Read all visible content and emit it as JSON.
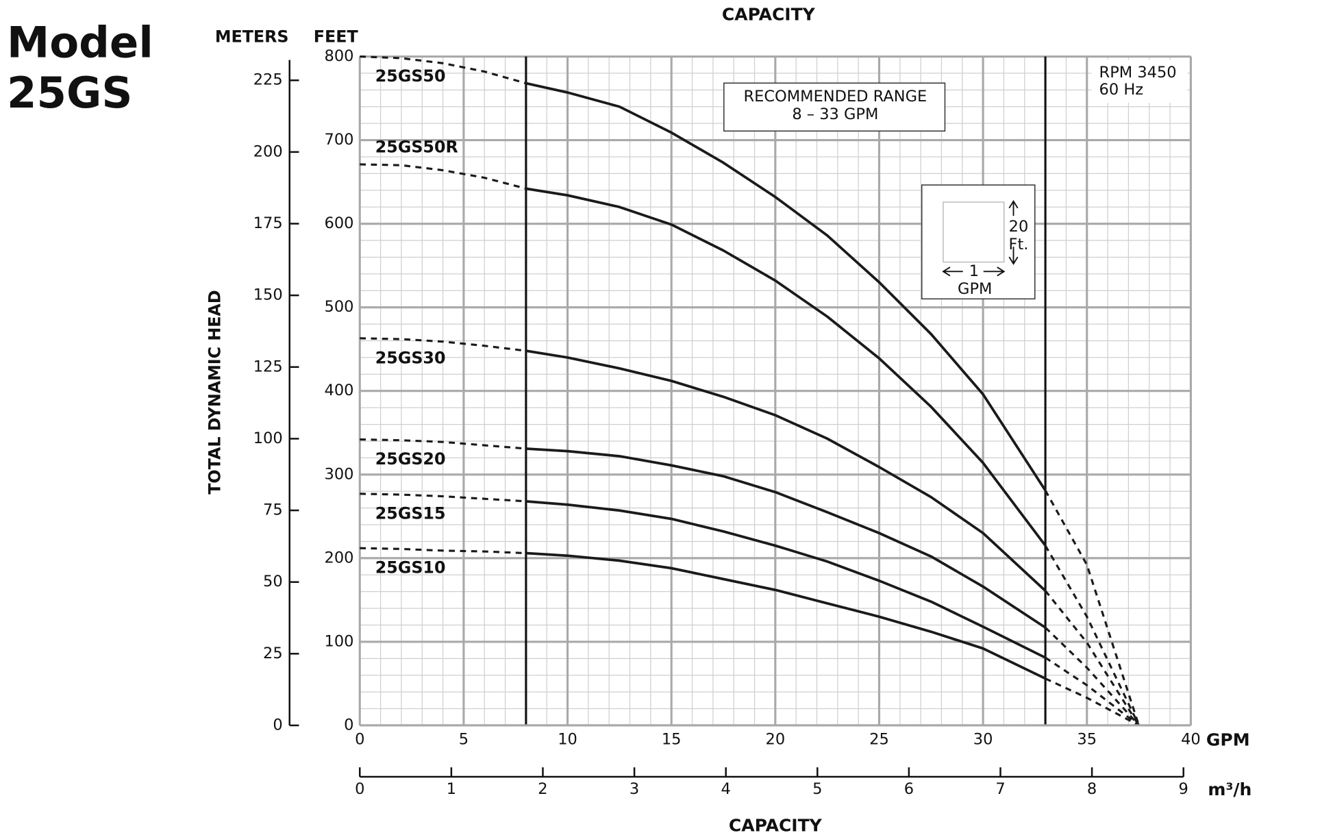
{
  "chart_data": {
    "type": "line",
    "title_lines": [
      "Model",
      "25GS"
    ],
    "x_title": "CAPACITY",
    "x2_title": "CAPACITY",
    "y_title": "TOTAL DYNAMIC HEAD",
    "y_unit": "FEET",
    "y2_unit": "METERS",
    "x_unit": "GPM",
    "x2_unit": "m³/h",
    "x": [
      0,
      2,
      4,
      6,
      8,
      10,
      12.5,
      15,
      17.5,
      20,
      22.5,
      25,
      27.5,
      30,
      33,
      35,
      37.5
    ],
    "xlim": [
      0,
      40
    ],
    "xticks": [
      0,
      5,
      10,
      15,
      20,
      25,
      30,
      35,
      40
    ],
    "x2lim": [
      0,
      9.08
    ],
    "x2ticks": [
      0,
      1,
      2,
      3,
      4,
      5,
      6,
      7,
      8,
      9
    ],
    "ylim": [
      0,
      800
    ],
    "yticks": [
      0,
      100,
      200,
      300,
      400,
      500,
      600,
      700,
      800
    ],
    "y2lim": [
      0,
      233.3
    ],
    "y2ticks": [
      0,
      25,
      50,
      75,
      100,
      125,
      150,
      175,
      200,
      225
    ],
    "grid": true,
    "series": [
      {
        "name": "25GS50",
        "color": "#1a1a1a",
        "values": [
          800,
          798,
          792,
          782,
          768,
          757,
          740,
          709,
          673,
          632,
          586,
          530,
          468,
          396,
          281,
          192,
          0
        ]
      },
      {
        "name": "25GS50R",
        "color": "#1a1a1a",
        "values": [
          671,
          670,
          664,
          655,
          642,
          634,
          620,
          599,
          568,
          532,
          489,
          439,
          381,
          314,
          215,
          130,
          0
        ]
      },
      {
        "name": "25GS30",
        "color": "#1a1a1a",
        "values": [
          463,
          462,
          459,
          454,
          448,
          440,
          427,
          412,
          393,
          371,
          343,
          309,
          273,
          230,
          161,
          99,
          0
        ]
      },
      {
        "name": "25GS20",
        "color": "#1a1a1a",
        "values": [
          342,
          341,
          339,
          335,
          331,
          328,
          322,
          311,
          298,
          279,
          255,
          230,
          202,
          166,
          117,
          69,
          0
        ]
      },
      {
        "name": "25GS15",
        "color": "#1a1a1a",
        "values": [
          277,
          276,
          274,
          271,
          268,
          264,
          257,
          247,
          232,
          215,
          196,
          173,
          148,
          118,
          81,
          48,
          0
        ]
      },
      {
        "name": "25GS10",
        "color": "#1a1a1a",
        "values": [
          212,
          211,
          209,
          208,
          206,
          203,
          197,
          188,
          175,
          162,
          146,
          130,
          112,
          92,
          56,
          33,
          0
        ]
      }
    ],
    "recommended_range": [
      8,
      33
    ],
    "recommended_label": [
      "RECOMMENDED RANGE",
      "8 – 33 GPM"
    ],
    "info_lines": [
      "RPM 3450",
      "60 Hz"
    ],
    "scale_box": {
      "gpm": 1,
      "gpm_unit": "GPM",
      "ft": 20,
      "ft_unit": "Ft."
    }
  }
}
